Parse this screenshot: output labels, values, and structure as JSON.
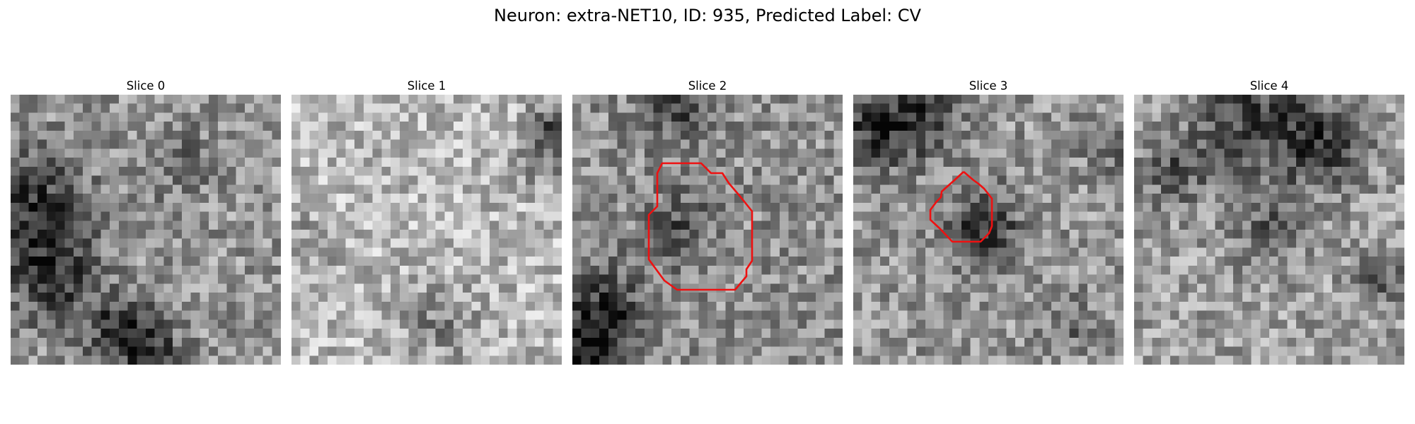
{
  "figure": {
    "title": "Neuron: extra-NET10, ID: 935, Predicted Label: CV"
  },
  "panels": [
    {
      "title": "Slice 0",
      "has_contour": false,
      "dark_blobs": "left-middle, bottom-center"
    },
    {
      "title": "Slice 1",
      "has_contour": false,
      "dark_blobs": "top-right corner, bottom-center"
    },
    {
      "title": "Slice 2",
      "has_contour": true,
      "dark_blobs": "top-center, bottom-left corner"
    },
    {
      "title": "Slice 3",
      "has_contour": true,
      "dark_blobs": "top-left band, center"
    },
    {
      "title": "Slice 4",
      "has_contour": false,
      "dark_blobs": "top band"
    }
  ],
  "image_style": {
    "colormap": "gray",
    "contour_color": "#ee1111"
  }
}
